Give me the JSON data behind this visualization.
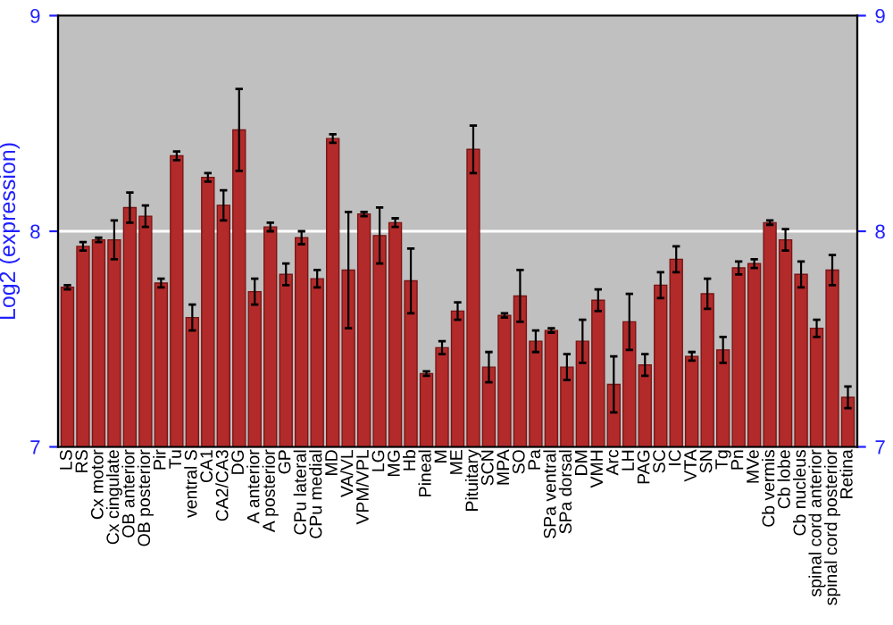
{
  "chart_data": {
    "type": "bar",
    "ylabel": "Log2 (expression)",
    "categories": [
      "LS",
      "RS",
      "Cx motor",
      "Cx cingulate",
      "OB anterior",
      "OB posterior",
      "Pir",
      "Tu",
      "ventral S",
      "CA1",
      "CA2/CA3",
      "DG",
      "A anterior",
      "A posterior",
      "GP",
      "CPu lateral",
      "CPu medial",
      "MD",
      "VA/VL",
      "VPM/VPL",
      "LG",
      "MG",
      "Hb",
      "Pineal",
      "M",
      "ME",
      "Pituitary",
      "SCN",
      "MPA",
      "SO",
      "Pa",
      "SPa ventral",
      "SPa dorsal",
      "DM",
      "VMH",
      "Arc",
      "LH",
      "PAG",
      "SC",
      "IC",
      "VTA",
      "SN",
      "Tg",
      "Pn",
      "MVe",
      "Cb vermis",
      "Cb lobe",
      "Cb nucleus",
      "spinal cord anterior",
      "spinal cord posterior",
      "Retina"
    ],
    "values": [
      7.74,
      7.93,
      7.96,
      7.96,
      8.11,
      8.07,
      7.76,
      8.35,
      7.6,
      8.25,
      8.12,
      8.47,
      7.72,
      8.02,
      7.8,
      7.97,
      7.78,
      8.43,
      7.82,
      8.08,
      7.98,
      8.04,
      7.77,
      7.34,
      7.46,
      7.63,
      8.38,
      7.37,
      7.61,
      7.7,
      7.49,
      7.54,
      7.37,
      7.49,
      7.68,
      7.29,
      7.58,
      7.38,
      7.75,
      7.87,
      7.42,
      7.71,
      7.45,
      7.83,
      7.85,
      8.04,
      7.96,
      7.8,
      7.55,
      7.82,
      7.23
    ],
    "errors": [
      0.01,
      0.02,
      0.01,
      0.09,
      0.07,
      0.05,
      0.02,
      0.02,
      0.06,
      0.02,
      0.07,
      0.19,
      0.06,
      0.02,
      0.05,
      0.03,
      0.04,
      0.02,
      0.27,
      0.01,
      0.13,
      0.02,
      0.15,
      0.01,
      0.03,
      0.04,
      0.11,
      0.07,
      0.01,
      0.12,
      0.05,
      0.01,
      0.06,
      0.1,
      0.05,
      0.13,
      0.13,
      0.05,
      0.06,
      0.06,
      0.02,
      0.07,
      0.06,
      0.03,
      0.02,
      0.01,
      0.05,
      0.06,
      0.04,
      0.07,
      0.05
    ],
    "color": "#b22a2a",
    "ylim": [
      7,
      9
    ],
    "yticks": [
      7,
      8,
      9
    ],
    "y2lim": [
      7,
      9
    ],
    "y2ticks": [
      7,
      8,
      9
    ],
    "grid": "y"
  }
}
